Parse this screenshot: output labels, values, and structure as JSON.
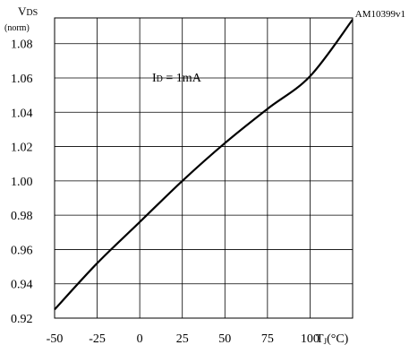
{
  "chart_data": {
    "type": "line",
    "figure_id": "AM10399v1",
    "ylabel": {
      "main": "V",
      "sub": "DS",
      "note": "(norm)"
    },
    "xlabel": {
      "main": "T",
      "sub": "J",
      "unit": "(°C)"
    },
    "annotation": {
      "main": "I",
      "sub": "D",
      "rest": " = 1mA"
    },
    "xlim": [
      -50,
      125
    ],
    "ylim": [
      0.92,
      1.095
    ],
    "x_ticks": [
      -50,
      -25,
      0,
      25,
      50,
      75,
      100
    ],
    "x_tick_labels": [
      "-50",
      "-25",
      "0",
      "25",
      "50",
      "75",
      "100"
    ],
    "y_ticks": [
      0.92,
      0.94,
      0.96,
      0.98,
      1.0,
      1.02,
      1.04,
      1.06,
      1.08
    ],
    "y_tick_labels": [
      "0.92",
      "0.94",
      "0.96",
      "0.98",
      "1.00",
      "1.02",
      "1.04",
      "1.06",
      "1.08"
    ],
    "grid": true,
    "series": [
      {
        "x": [
          -50,
          -25,
          0,
          25,
          50,
          75,
          100,
          125
        ],
        "y": [
          0.925,
          0.952,
          0.976,
          1.0,
          1.022,
          1.042,
          1.061,
          1.094
        ],
        "color": "#000000"
      }
    ]
  }
}
